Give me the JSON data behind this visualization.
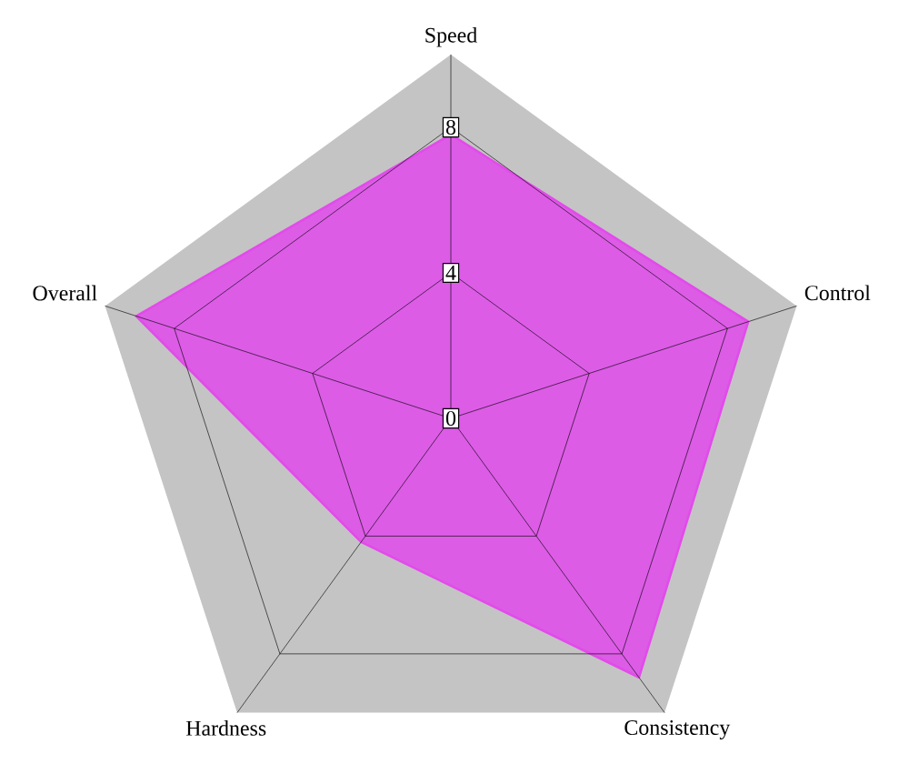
{
  "chart_data": {
    "type": "radar",
    "categories": [
      "Speed",
      "Control",
      "Consistency",
      "Hardness",
      "Overall"
    ],
    "series": [
      {
        "color": "#dc5ce6",
        "values": [
          7.8,
          8.6,
          8.8,
          4.2,
          9.1
        ]
      }
    ],
    "ylim": [
      0,
      10
    ],
    "yticks": [
      0,
      4,
      8
    ],
    "grid": true
  }
}
